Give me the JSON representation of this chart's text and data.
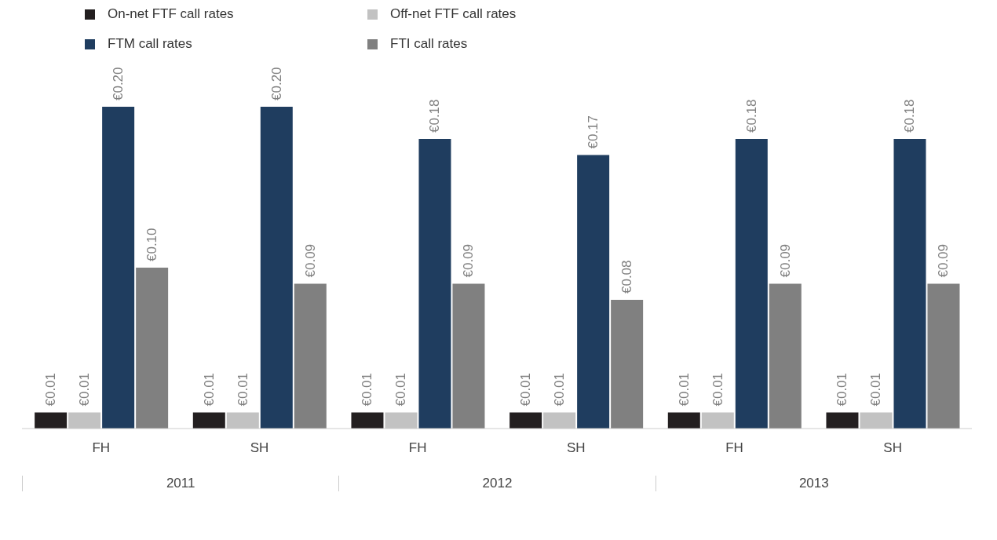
{
  "chart_data": {
    "type": "bar",
    "categories": [
      "FH",
      "SH",
      "FH",
      "SH",
      "FH",
      "SH"
    ],
    "series": [
      {
        "name": "On-net FTF call rates",
        "color": "#231f20",
        "values": [
          0.01,
          0.01,
          0.01,
          0.01,
          0.01,
          0.01
        ],
        "value_labels": [
          "€0.01",
          "€0.01",
          "€0.01",
          "€0.01",
          "€0.01",
          "€0.01"
        ]
      },
      {
        "name": "Off-net FTF call rates",
        "color": "#c2c2c2",
        "values": [
          0.01,
          0.01,
          0.01,
          0.01,
          0.01,
          0.01
        ],
        "value_labels": [
          "€0.01",
          "€0.01",
          "€0.01",
          "€0.01",
          "€0.01",
          "€0.01"
        ]
      },
      {
        "name": "FTM call rates",
        "color": "#1f3d5f",
        "values": [
          0.2,
          0.2,
          0.18,
          0.17,
          0.18,
          0.18
        ],
        "value_labels": [
          "€0.20",
          "€0.20",
          "€0.18",
          "€0.17",
          "€0.18",
          "€0.18"
        ]
      },
      {
        "name": "FTI call rates",
        "color": "#808080",
        "values": [
          0.1,
          0.09,
          0.09,
          0.08,
          0.09,
          0.09
        ],
        "value_labels": [
          "€0.10",
          "€0.09",
          "€0.09",
          "€0.08",
          "€0.09",
          "€0.09"
        ]
      }
    ],
    "annotations": [
      "2011",
      "2012",
      "2013"
    ],
    "legend": "top left"
  }
}
